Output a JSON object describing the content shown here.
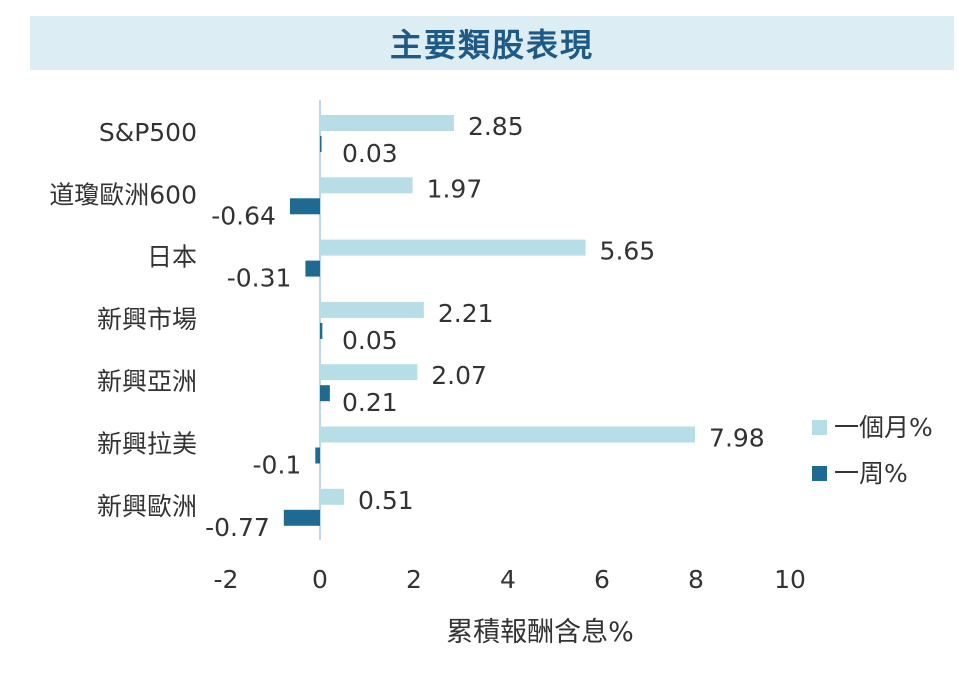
{
  "chart_data": {
    "type": "bar",
    "orientation": "horizontal",
    "title": "主要類股表現",
    "xlabel": "累積報酬含息%",
    "ylabel": "",
    "xlim": [
      -2,
      10
    ],
    "xticks": [
      "-2",
      "0",
      "2",
      "4",
      "6",
      "8",
      "10"
    ],
    "categories": [
      "S&P500",
      "道瓊歐洲600",
      "日本",
      "新興市場",
      "新興亞洲",
      "新興拉美",
      "新興歐洲"
    ],
    "series": [
      {
        "name": "一個月%",
        "color": "#b7dde6",
        "values": [
          2.85,
          1.97,
          5.65,
          2.21,
          2.07,
          7.98,
          0.51
        ],
        "labels": [
          "2.85",
          "1.97",
          "5.65",
          "2.21",
          "2.07",
          "7.98",
          "0.51"
        ]
      },
      {
        "name": "一周%",
        "color": "#1f6a93",
        "values": [
          0.03,
          -0.64,
          -0.31,
          0.05,
          0.21,
          -0.1,
          -0.77
        ],
        "labels": [
          "0.03",
          "-0.64",
          "-0.31",
          "0.05",
          "0.21",
          "-0.1",
          "-0.77"
        ]
      }
    ],
    "grid": false,
    "legend_position": "right"
  }
}
